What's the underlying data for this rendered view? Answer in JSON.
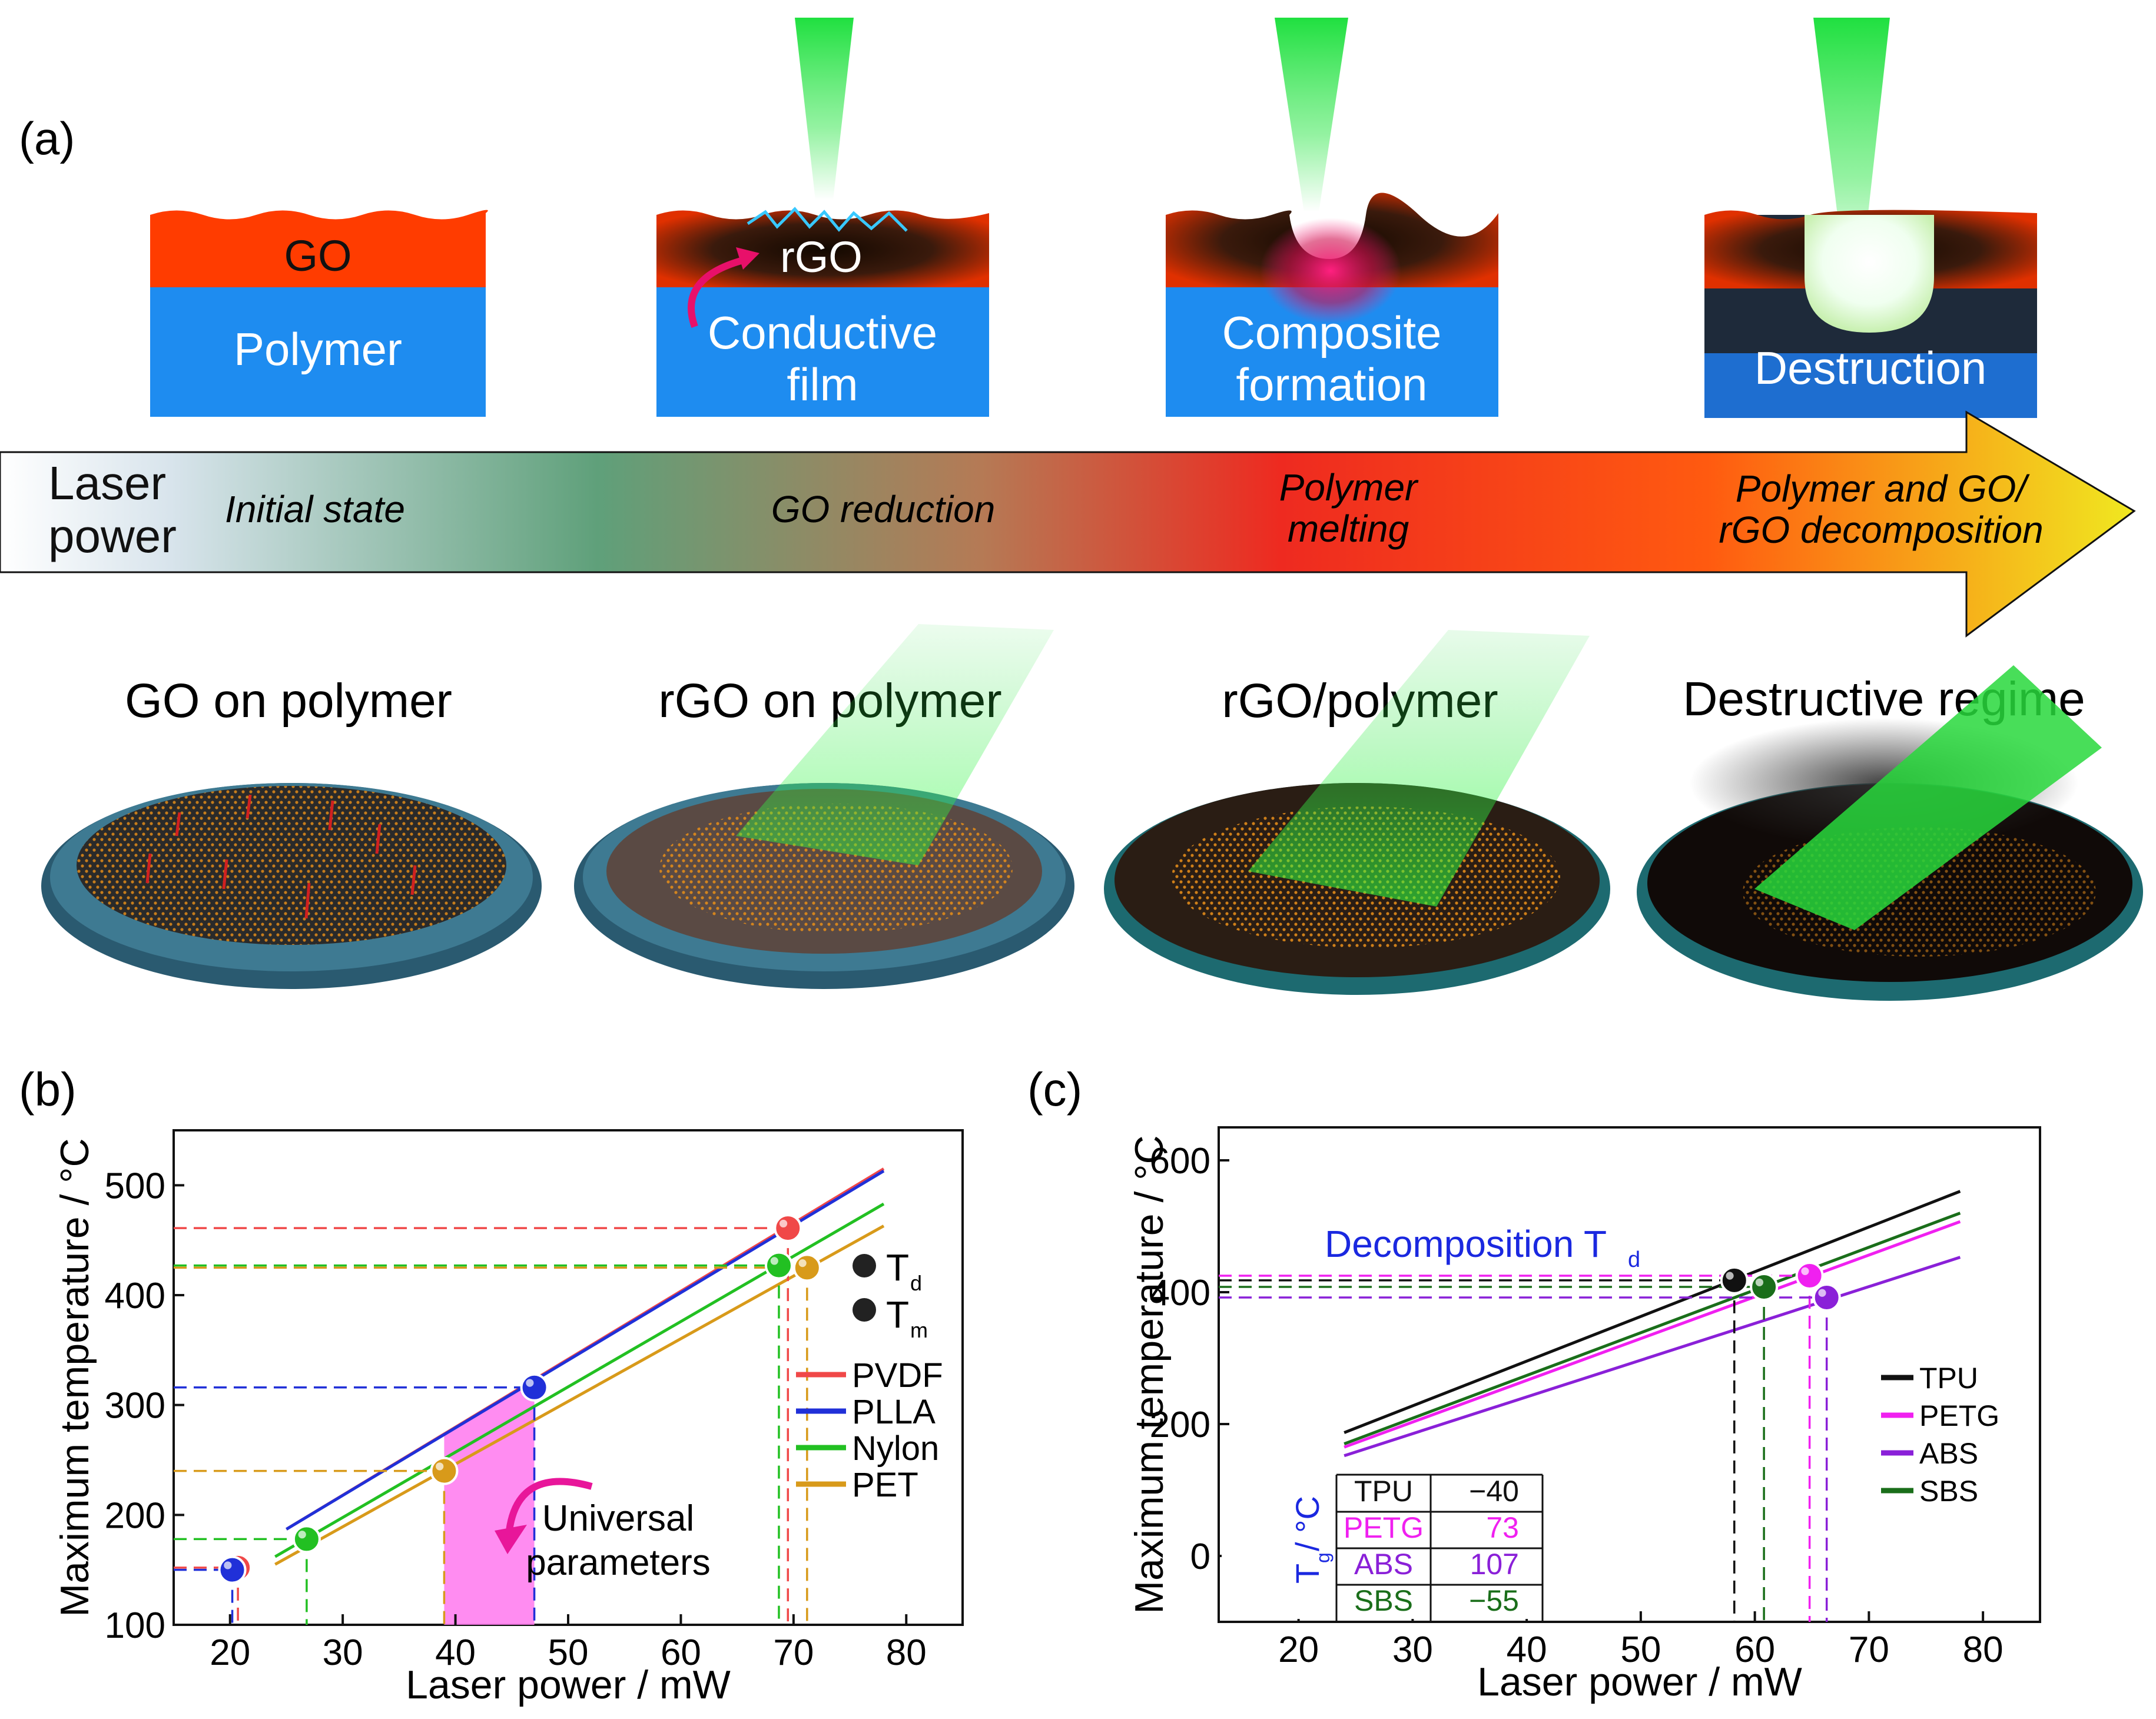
{
  "panel_a": {
    "label": "(a)",
    "stages": [
      {
        "top": "GO",
        "bottom": "Polymer"
      },
      {
        "top": "rGO",
        "bottom_line1": "Conductive",
        "bottom_line2": "film"
      },
      {
        "bottom_line1": "Composite",
        "bottom_line2": "formation"
      },
      {
        "bottom": "Destruction"
      }
    ],
    "arrow": {
      "axis_line1": "Laser",
      "axis_line2": "power",
      "regimes": [
        {
          "line1": "Initial state"
        },
        {
          "line1": "GO reduction"
        },
        {
          "line1": "Polymer",
          "line2": "melting"
        },
        {
          "line1": "Polymer and GO/",
          "line2": "rGO decomposition"
        }
      ]
    },
    "illustrations": [
      {
        "title": "GO on polymer"
      },
      {
        "title": "rGO on polymer"
      },
      {
        "title": "rGO/polymer"
      },
      {
        "title": "Destructive regime"
      }
    ]
  },
  "chart_data": [
    {
      "panel": "(b)",
      "type": "line",
      "xlabel": "Laser power / mW",
      "ylabel": "Maximum temperature / °C",
      "xlim": [
        15,
        85
      ],
      "ylim": [
        100,
        550
      ],
      "xticks": [
        20,
        30,
        40,
        50,
        60,
        70,
        80
      ],
      "yticks": [
        100,
        200,
        300,
        400,
        500
      ],
      "series": [
        {
          "name": "PVDF",
          "color": "#f04848",
          "x": [
            25,
            78
          ],
          "y": [
            187,
            515
          ]
        },
        {
          "name": "PLLA",
          "color": "#2030d8",
          "x": [
            25,
            78
          ],
          "y": [
            187,
            513
          ]
        },
        {
          "name": "Nylon",
          "color": "#22c022",
          "x": [
            24,
            78
          ],
          "y": [
            162,
            483
          ]
        },
        {
          "name": "PET",
          "color": "#d89a1a",
          "x": [
            24,
            78
          ],
          "y": [
            155,
            463
          ]
        }
      ],
      "markers": [
        {
          "series": "PVDF",
          "kind": "Tm",
          "x": 20.7,
          "y": 152
        },
        {
          "series": "PVDF",
          "kind": "Td",
          "x": 69.5,
          "y": 461
        },
        {
          "series": "PLLA",
          "kind": "Tm",
          "x": 20.2,
          "y": 150
        },
        {
          "series": "PLLA",
          "kind": "Td",
          "x": 47,
          "y": 316
        },
        {
          "series": "Nylon",
          "kind": "Tm",
          "x": 26.8,
          "y": 178
        },
        {
          "series": "Nylon",
          "kind": "Td",
          "x": 68.7,
          "y": 427
        },
        {
          "series": "PET",
          "kind": "Tm",
          "x": 39,
          "y": 240
        },
        {
          "series": "PET",
          "kind": "Td",
          "x": 71.2,
          "y": 425
        }
      ],
      "shaded_region": {
        "x": [
          39,
          47
        ],
        "color": "#ff80f0",
        "label_line1": "Universal",
        "label_line2": "parameters"
      },
      "marker_legend": [
        "T",
        "T"
      ],
      "marker_legend_sub": [
        "d",
        "m"
      ],
      "legend_position": "right"
    },
    {
      "panel": "(c)",
      "type": "line",
      "xlabel": "Laser power / mW",
      "ylabel": "Maximum temperature / °C",
      "xlim": [
        13,
        85
      ],
      "ylim": [
        -100,
        650
      ],
      "xticks": [
        20,
        30,
        40,
        50,
        60,
        70,
        80
      ],
      "yticks": [
        0,
        200,
        400,
        600
      ],
      "series": [
        {
          "name": "TPU",
          "color": "#111111",
          "x": [
            24,
            78
          ],
          "y": [
            187,
            553
          ]
        },
        {
          "name": "PETG",
          "color": "#f020f0",
          "x": [
            24,
            78
          ],
          "y": [
            165,
            507
          ]
        },
        {
          "name": "ABS",
          "color": "#8a20d8",
          "x": [
            24,
            78
          ],
          "y": [
            152,
            453
          ]
        },
        {
          "name": "SBS",
          "color": "#1a6e1a",
          "x": [
            24,
            78
          ],
          "y": [
            170,
            520
          ]
        }
      ],
      "markers": [
        {
          "series": "TPU",
          "x": 58.2,
          "y": 418
        },
        {
          "series": "SBS",
          "x": 60.8,
          "y": 408
        },
        {
          "series": "PETG",
          "x": 64.8,
          "y": 425
        },
        {
          "series": "ABS",
          "x": 66.3,
          "y": 392
        }
      ],
      "annotation_text": "Decomposition T",
      "annotation_sub": "d",
      "tg_table": {
        "axis_label": "T",
        "axis_label_sub": "g",
        "axis_label_unit": " / °C",
        "rows": [
          {
            "name": "TPU",
            "value": "−40",
            "color": "#111111"
          },
          {
            "name": "PETG",
            "value": "73",
            "color": "#f020f0"
          },
          {
            "name": "ABS",
            "value": "107",
            "color": "#8a20d8"
          },
          {
            "name": "SBS",
            "value": "−55",
            "color": "#1a6e1a"
          }
        ]
      },
      "legend_position": "right"
    }
  ],
  "panel_labels": {
    "b": "(b)",
    "c": "(c)"
  }
}
